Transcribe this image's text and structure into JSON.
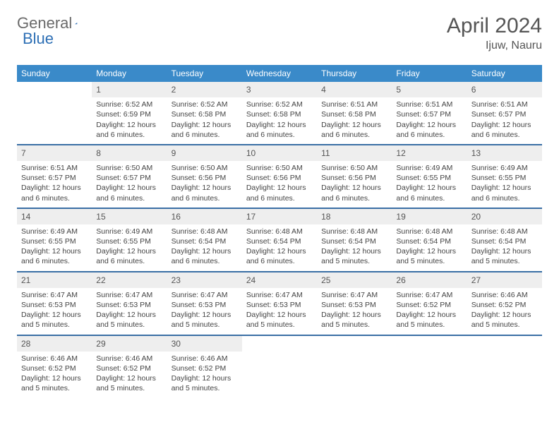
{
  "logo": {
    "text1": "General",
    "text2": "Blue"
  },
  "title": "April 2024",
  "location": "Ijuw, Nauru",
  "colors": {
    "header_bg": "#3a8ac9",
    "header_text": "#ffffff",
    "row_border": "#3a6fa5",
    "daynum_bg": "#eeeeee",
    "body_text": "#444444",
    "logo_gray": "#6a6a6a",
    "logo_blue": "#2d6fb5"
  },
  "weekdays": [
    "Sunday",
    "Monday",
    "Tuesday",
    "Wednesday",
    "Thursday",
    "Friday",
    "Saturday"
  ],
  "weeks": [
    [
      {
        "n": "",
        "sr": "",
        "ss": "",
        "dl": "",
        "empty": true
      },
      {
        "n": "1",
        "sr": "Sunrise: 6:52 AM",
        "ss": "Sunset: 6:59 PM",
        "dl": "Daylight: 12 hours and 6 minutes."
      },
      {
        "n": "2",
        "sr": "Sunrise: 6:52 AM",
        "ss": "Sunset: 6:58 PM",
        "dl": "Daylight: 12 hours and 6 minutes."
      },
      {
        "n": "3",
        "sr": "Sunrise: 6:52 AM",
        "ss": "Sunset: 6:58 PM",
        "dl": "Daylight: 12 hours and 6 minutes."
      },
      {
        "n": "4",
        "sr": "Sunrise: 6:51 AM",
        "ss": "Sunset: 6:58 PM",
        "dl": "Daylight: 12 hours and 6 minutes."
      },
      {
        "n": "5",
        "sr": "Sunrise: 6:51 AM",
        "ss": "Sunset: 6:57 PM",
        "dl": "Daylight: 12 hours and 6 minutes."
      },
      {
        "n": "6",
        "sr": "Sunrise: 6:51 AM",
        "ss": "Sunset: 6:57 PM",
        "dl": "Daylight: 12 hours and 6 minutes."
      }
    ],
    [
      {
        "n": "7",
        "sr": "Sunrise: 6:51 AM",
        "ss": "Sunset: 6:57 PM",
        "dl": "Daylight: 12 hours and 6 minutes."
      },
      {
        "n": "8",
        "sr": "Sunrise: 6:50 AM",
        "ss": "Sunset: 6:57 PM",
        "dl": "Daylight: 12 hours and 6 minutes."
      },
      {
        "n": "9",
        "sr": "Sunrise: 6:50 AM",
        "ss": "Sunset: 6:56 PM",
        "dl": "Daylight: 12 hours and 6 minutes."
      },
      {
        "n": "10",
        "sr": "Sunrise: 6:50 AM",
        "ss": "Sunset: 6:56 PM",
        "dl": "Daylight: 12 hours and 6 minutes."
      },
      {
        "n": "11",
        "sr": "Sunrise: 6:50 AM",
        "ss": "Sunset: 6:56 PM",
        "dl": "Daylight: 12 hours and 6 minutes."
      },
      {
        "n": "12",
        "sr": "Sunrise: 6:49 AM",
        "ss": "Sunset: 6:55 PM",
        "dl": "Daylight: 12 hours and 6 minutes."
      },
      {
        "n": "13",
        "sr": "Sunrise: 6:49 AM",
        "ss": "Sunset: 6:55 PM",
        "dl": "Daylight: 12 hours and 6 minutes."
      }
    ],
    [
      {
        "n": "14",
        "sr": "Sunrise: 6:49 AM",
        "ss": "Sunset: 6:55 PM",
        "dl": "Daylight: 12 hours and 6 minutes."
      },
      {
        "n": "15",
        "sr": "Sunrise: 6:49 AM",
        "ss": "Sunset: 6:55 PM",
        "dl": "Daylight: 12 hours and 6 minutes."
      },
      {
        "n": "16",
        "sr": "Sunrise: 6:48 AM",
        "ss": "Sunset: 6:54 PM",
        "dl": "Daylight: 12 hours and 6 minutes."
      },
      {
        "n": "17",
        "sr": "Sunrise: 6:48 AM",
        "ss": "Sunset: 6:54 PM",
        "dl": "Daylight: 12 hours and 6 minutes."
      },
      {
        "n": "18",
        "sr": "Sunrise: 6:48 AM",
        "ss": "Sunset: 6:54 PM",
        "dl": "Daylight: 12 hours and 5 minutes."
      },
      {
        "n": "19",
        "sr": "Sunrise: 6:48 AM",
        "ss": "Sunset: 6:54 PM",
        "dl": "Daylight: 12 hours and 5 minutes."
      },
      {
        "n": "20",
        "sr": "Sunrise: 6:48 AM",
        "ss": "Sunset: 6:54 PM",
        "dl": "Daylight: 12 hours and 5 minutes."
      }
    ],
    [
      {
        "n": "21",
        "sr": "Sunrise: 6:47 AM",
        "ss": "Sunset: 6:53 PM",
        "dl": "Daylight: 12 hours and 5 minutes."
      },
      {
        "n": "22",
        "sr": "Sunrise: 6:47 AM",
        "ss": "Sunset: 6:53 PM",
        "dl": "Daylight: 12 hours and 5 minutes."
      },
      {
        "n": "23",
        "sr": "Sunrise: 6:47 AM",
        "ss": "Sunset: 6:53 PM",
        "dl": "Daylight: 12 hours and 5 minutes."
      },
      {
        "n": "24",
        "sr": "Sunrise: 6:47 AM",
        "ss": "Sunset: 6:53 PM",
        "dl": "Daylight: 12 hours and 5 minutes."
      },
      {
        "n": "25",
        "sr": "Sunrise: 6:47 AM",
        "ss": "Sunset: 6:53 PM",
        "dl": "Daylight: 12 hours and 5 minutes."
      },
      {
        "n": "26",
        "sr": "Sunrise: 6:47 AM",
        "ss": "Sunset: 6:52 PM",
        "dl": "Daylight: 12 hours and 5 minutes."
      },
      {
        "n": "27",
        "sr": "Sunrise: 6:46 AM",
        "ss": "Sunset: 6:52 PM",
        "dl": "Daylight: 12 hours and 5 minutes."
      }
    ],
    [
      {
        "n": "28",
        "sr": "Sunrise: 6:46 AM",
        "ss": "Sunset: 6:52 PM",
        "dl": "Daylight: 12 hours and 5 minutes."
      },
      {
        "n": "29",
        "sr": "Sunrise: 6:46 AM",
        "ss": "Sunset: 6:52 PM",
        "dl": "Daylight: 12 hours and 5 minutes."
      },
      {
        "n": "30",
        "sr": "Sunrise: 6:46 AM",
        "ss": "Sunset: 6:52 PM",
        "dl": "Daylight: 12 hours and 5 minutes."
      },
      {
        "n": "",
        "sr": "",
        "ss": "",
        "dl": "",
        "trailing": true
      },
      {
        "n": "",
        "sr": "",
        "ss": "",
        "dl": "",
        "trailing": true
      },
      {
        "n": "",
        "sr": "",
        "ss": "",
        "dl": "",
        "trailing": true
      },
      {
        "n": "",
        "sr": "",
        "ss": "",
        "dl": "",
        "trailing": true
      }
    ]
  ]
}
